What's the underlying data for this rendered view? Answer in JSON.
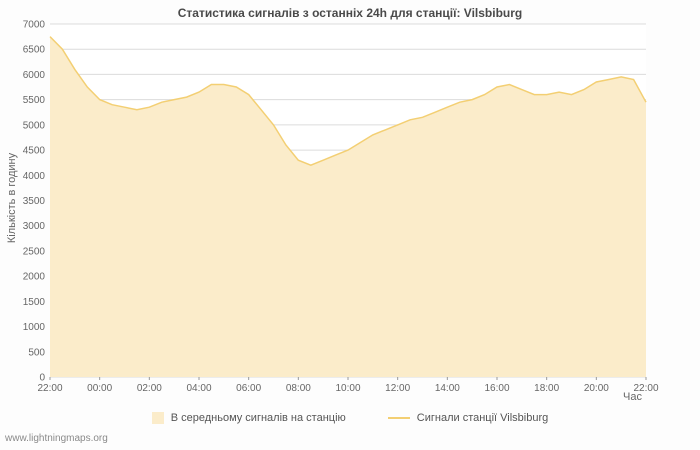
{
  "watermark": "www.lightningmaps.org",
  "chart_data": {
    "type": "area",
    "title": "Статистика сигналів з останніх 24h для станції: Vilsbiburg",
    "ylabel": "Кількість в годину",
    "xlabel": "Час",
    "ylim": [
      0,
      7000
    ],
    "ytick_step": 500,
    "grid": "horizontal",
    "legend_position": "bottom",
    "x_ticks": [
      "22:00",
      "00:00",
      "02:00",
      "04:00",
      "06:00",
      "08:00",
      "10:00",
      "12:00",
      "14:00",
      "16:00",
      "18:00",
      "20:00",
      "22:00"
    ],
    "x_interval_minutes": 30,
    "series": [
      {
        "name": "В середньому сигналів на станцію",
        "type": "area",
        "values": [
          6750,
          6500,
          6100,
          5750,
          5500,
          5400,
          5350,
          5300,
          5350,
          5450,
          5500,
          5550,
          5650,
          5800,
          5800,
          5750,
          5600,
          5300,
          5000,
          4600,
          4300,
          4200,
          4300,
          4400,
          4500,
          4650,
          4800,
          4900,
          5000,
          5100,
          5150,
          5250,
          5350,
          5450,
          5500,
          5600,
          5750,
          5800,
          5700,
          5600,
          5600,
          5650,
          5600,
          5700,
          5850,
          5900,
          5950,
          5900,
          5450
        ]
      },
      {
        "name": "Сигнали станції Vilsbiburg",
        "type": "line",
        "values": [
          6750,
          6500,
          6100,
          5750,
          5500,
          5400,
          5350,
          5300,
          5350,
          5450,
          5500,
          5550,
          5650,
          5800,
          5800,
          5750,
          5600,
          5300,
          5000,
          4600,
          4300,
          4200,
          4300,
          4400,
          4500,
          4650,
          4800,
          4900,
          5000,
          5100,
          5150,
          5250,
          5350,
          5450,
          5500,
          5600,
          5750,
          5800,
          5700,
          5600,
          5600,
          5650,
          5600,
          5700,
          5850,
          5900,
          5950,
          5900,
          5450
        ]
      }
    ],
    "colors": {
      "area_fill": "#fbecca",
      "line": "#f3cf73",
      "grid": "#dcdcdc",
      "plot_bg": "#ffffff",
      "text": "#666666"
    }
  }
}
